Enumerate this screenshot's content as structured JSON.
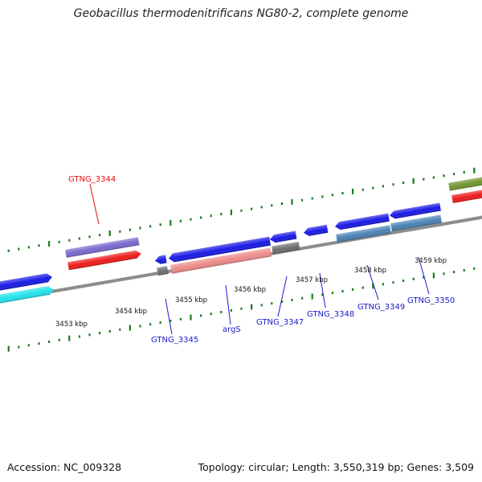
{
  "title": "Geobacillus thermodenitrificans NG80-2, complete genome",
  "footer": {
    "accession": "Accession: NC_009328",
    "summary": "Topology: circular; Length: 3,550,319 bp; Genes: 3,509"
  },
  "colors": {
    "backbone": "#8c8c8c",
    "tick": "#1d7a1d",
    "cds_blue": "#1a1ae6",
    "cds_red": "#ee1c1c",
    "cds_purple": "#7a68cc",
    "cds_cyan": "#22e3ea",
    "cds_olive": "#6f962e",
    "cds_pink": "#ee8a8a",
    "cds_gray": "#6e6e6e",
    "cds_steel": "#4a82b4",
    "label_red": "#e01010",
    "label_blue": "#1a1acc"
  },
  "scale": {
    "unit": "kbp",
    "labels": [
      "3453 kbp",
      "3454 kbp",
      "3455 kbp",
      "3456 kbp",
      "3457 kbp",
      "3458 kbp",
      "3459 kbp"
    ]
  },
  "genes": [
    {
      "label": "GTNG_3344",
      "label_color": "label_red"
    },
    {
      "label": "GTNG_3345",
      "label_color": "label_blue"
    },
    {
      "label": "argS",
      "label_color": "label_blue"
    },
    {
      "label": "GTNG_3347",
      "label_color": "label_blue"
    },
    {
      "label": "GTNG_3348",
      "label_color": "label_blue"
    },
    {
      "label": "GTNG_3349",
      "label_color": "label_blue"
    },
    {
      "label": "GTNG_3350",
      "label_color": "label_blue"
    }
  ]
}
